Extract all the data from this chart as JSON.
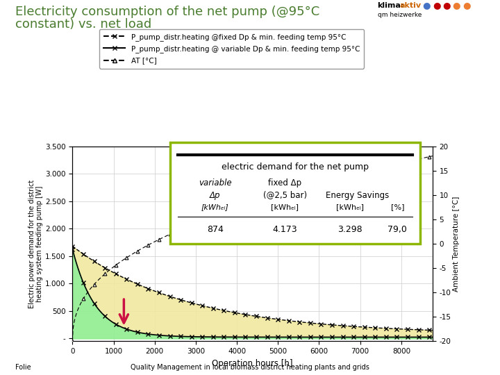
{
  "title_line1": "Electricity consumption of the net pump (@95°C",
  "title_line2": "constant) vs. net load",
  "xlabel": "Operation hours [h]",
  "ylabel": "Electric power demand for the district\nheating system feeding pump [W]",
  "ylabel2": "Ambient Temperature [°C]",
  "xlim": [
    0,
    8760
  ],
  "ylim_left": [
    -50,
    3500
  ],
  "ylim_right": [
    -20,
    20
  ],
  "yticks_left": [
    0,
    500,
    1000,
    1500,
    2000,
    2500,
    3000,
    3500
  ],
  "ytick_labels_left": [
    "-",
    "500",
    "1.000",
    "1.500",
    "2.000",
    "2.500",
    "3.000",
    "3.500"
  ],
  "xticks": [
    0,
    1000,
    2000,
    3000,
    4000,
    5000,
    6000,
    7000,
    8000
  ],
  "background_color": "#ffffff",
  "legend1_label": "P_pump_distr.heating @fixed Dp & min. feeding temp 95°C",
  "legend2_label": "P_pump_distr.heating @ variable Dp & min. feeding temp 95°C",
  "legend3_label": "AT [°C]",
  "fill_yellow_color": "#f0e8a0",
  "fill_green_color": "#90ee90",
  "arrow_color": "#cc1144",
  "table_border_color": "#8db600",
  "table_title": "electric demand for the net pump",
  "table_row1": [
    "874",
    "4.173",
    "3.298",
    "79,0"
  ],
  "footer_left": "Folie",
  "footer_center": "Quality Management in local biomass district heating plants and grids",
  "title_color": "#4a7c2f",
  "klima_color": "#000000",
  "aktiv_color": "#cc6600",
  "dot_colors": [
    "#4472c4",
    "#c00000",
    "#c00000",
    "#ed7d31",
    "#ed7d31"
  ]
}
